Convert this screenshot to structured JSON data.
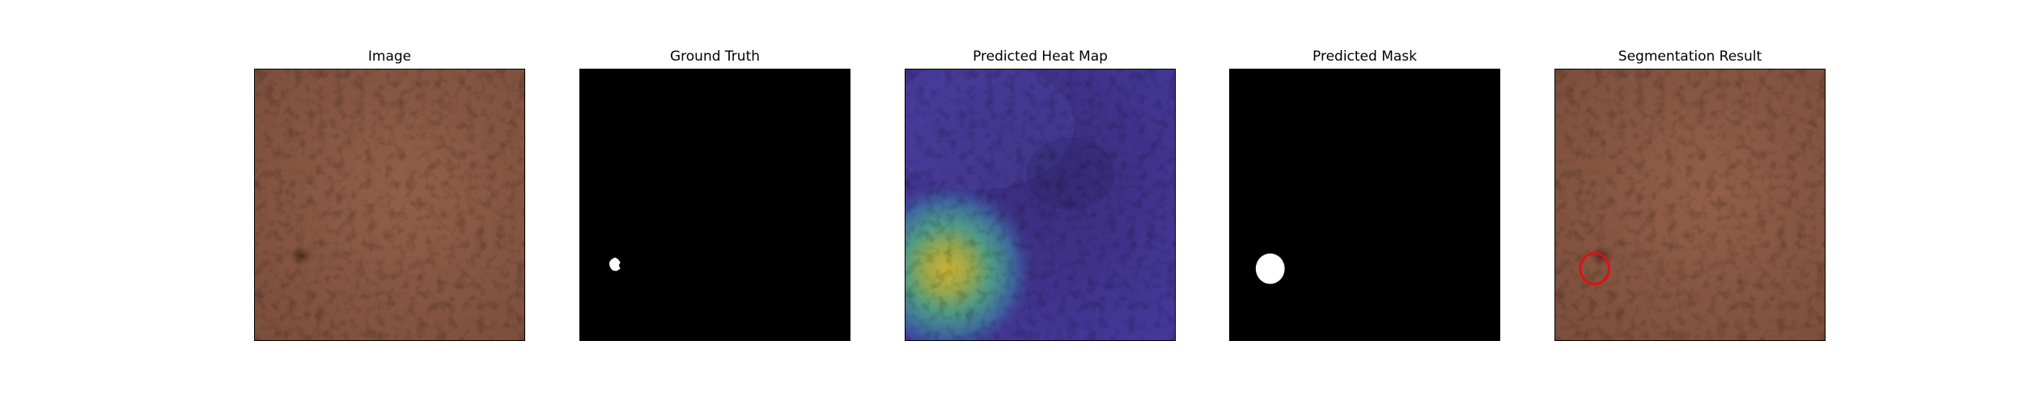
{
  "figure": {
    "panels": [
      {
        "title": "Image"
      },
      {
        "title": "Ground Truth"
      },
      {
        "title": "Predicted Heat Map"
      },
      {
        "title": "Predicted Mask"
      },
      {
        "title": "Segmentation Result"
      }
    ]
  },
  "colors": {
    "leather": "#8a5a45",
    "mask_background": "#000000",
    "mask_foreground": "#ffffff",
    "heatmap_low": "#3b2f8a",
    "heatmap_high": "#d4c23a",
    "result_outline": "#e01010"
  }
}
